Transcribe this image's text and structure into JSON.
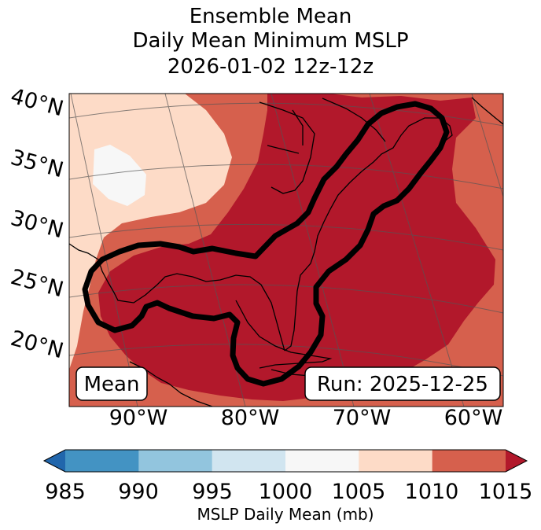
{
  "title": {
    "line1": "Ensemble Mean",
    "line2": "Daily Mean Minimum MSLP",
    "line3": "2026-01-02 12z-12z"
  },
  "map": {
    "lat_labels": [
      "40°N",
      "35°N",
      "30°N",
      "25°N",
      "20°N"
    ],
    "lon_labels": [
      "90°W",
      "80°W",
      "70°W",
      "60°W"
    ],
    "mean_label": "Mean",
    "run_label": "Run: 2025-12-25"
  },
  "colorbar": {
    "ticks": [
      "985",
      "990",
      "995",
      "1000",
      "1005",
      "1010",
      "1015"
    ],
    "label": "MSLP Daily Mean (mb)",
    "colors": [
      "#2166ac",
      "#4393c3",
      "#92c5de",
      "#d1e5f0",
      "#f7f7f7",
      "#fddbc7",
      "#d6604d",
      "#b2182b"
    ]
  }
}
